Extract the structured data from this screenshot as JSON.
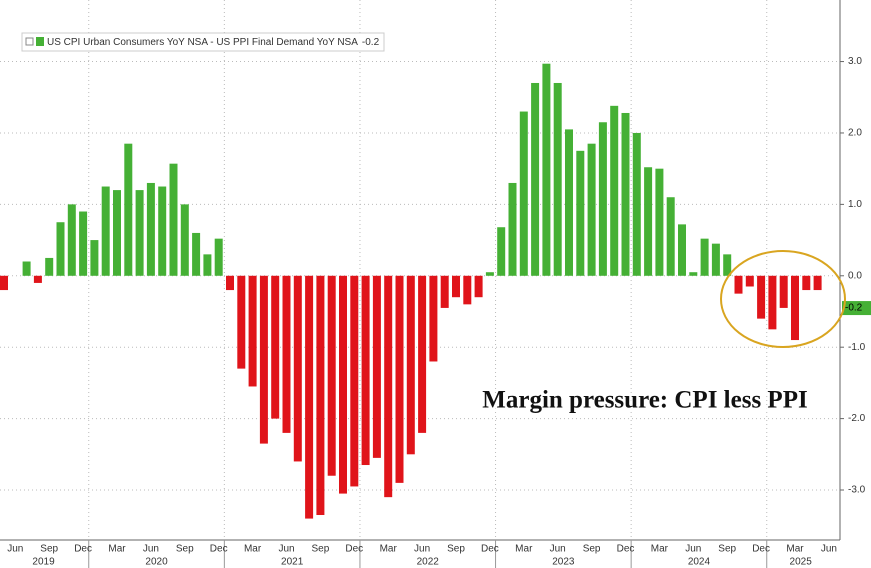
{
  "chart_data": {
    "type": "bar",
    "series": [
      {
        "name": "US CPI Urban Consumers YoY NSA - US PPI Final Demand YoY NSA",
        "positive_color": "#45b035",
        "negative_color": "#e0141a",
        "values": [
          -0.2,
          0.0,
          0.2,
          -0.1,
          0.25,
          0.75,
          1.0,
          0.9,
          0.5,
          1.25,
          1.2,
          1.85,
          1.2,
          1.3,
          1.25,
          1.57,
          1.0,
          0.6,
          0.3,
          0.52,
          -0.2,
          -1.3,
          -1.55,
          -2.35,
          -2.0,
          -2.2,
          -2.6,
          -3.4,
          -3.35,
          -2.8,
          -3.05,
          -2.95,
          -2.65,
          -2.55,
          -3.1,
          -2.9,
          -2.5,
          -2.2,
          -1.2,
          -0.45,
          -0.3,
          -0.4,
          -0.3,
          0.05,
          0.68,
          1.3,
          2.3,
          2.7,
          2.97,
          2.7,
          2.05,
          1.75,
          1.85,
          2.15,
          2.38,
          2.28,
          2.0,
          1.52,
          1.5,
          1.1,
          0.72,
          0.05,
          0.52,
          0.45,
          0.3,
          -0.25,
          -0.15,
          -0.6,
          -0.75,
          -0.45,
          -0.9,
          -0.2,
          -0.2,
          null
        ]
      }
    ],
    "categories": [
      null,
      "Jun",
      null,
      null,
      "Sep",
      null,
      null,
      "Dec",
      null,
      null,
      "Mar",
      null,
      null,
      "Jun",
      null,
      null,
      "Sep",
      null,
      null,
      "Dec",
      null,
      null,
      "Mar",
      null,
      null,
      "Jun",
      null,
      null,
      "Sep",
      null,
      null,
      "Dec",
      null,
      null,
      "Mar",
      null,
      null,
      "Jun",
      null,
      null,
      "Sep",
      null,
      null,
      "Dec",
      null,
      null,
      "Mar",
      null,
      null,
      "Jun",
      null,
      null,
      "Sep",
      null,
      null,
      "Dec",
      null,
      null,
      "Mar",
      null,
      null,
      "Jun",
      null,
      null,
      "Sep",
      null,
      null,
      "Dec",
      null,
      null,
      "Mar",
      null,
      null,
      "Jun"
    ],
    "year_groups": [
      {
        "label": "2019",
        "months": 8
      },
      {
        "label": "2020",
        "months": 12
      },
      {
        "label": "2021",
        "months": 12
      },
      {
        "label": "2022",
        "months": 12
      },
      {
        "label": "2023",
        "months": 12
      },
      {
        "label": "2024",
        "months": 12
      },
      {
        "label": "2025",
        "months": 6
      }
    ],
    "ylim": [
      -3.7,
      3.75
    ],
    "yticks": [
      {
        "value": -3,
        "label": "-3.0"
      },
      {
        "value": -2,
        "label": "-2.0"
      },
      {
        "value": -1,
        "label": "-1.0"
      },
      {
        "value": 0,
        "label": "0.0"
      },
      {
        "value": 1,
        "label": "1.0"
      },
      {
        "value": 2,
        "label": "2.0"
      },
      {
        "value": 3,
        "label": "3.0"
      }
    ],
    "grid": true,
    "annotation": "Margin pressure: CPI less PPI"
  }
}
